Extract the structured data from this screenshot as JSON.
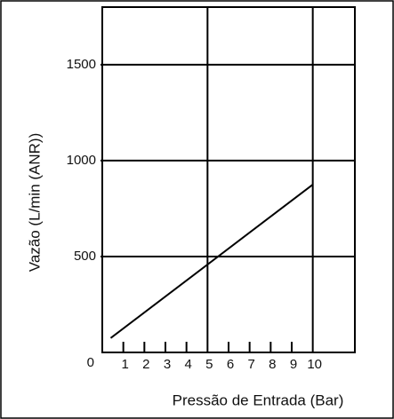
{
  "chart_data": {
    "type": "line",
    "xlabel": "Pressão de Entrada (Bar)",
    "ylabel": "Vazão (L/min (ANR))",
    "series": [
      {
        "x": [
          0.4,
          10
        ],
        "values": [
          75,
          875
        ],
        "color": "#000000"
      }
    ],
    "xlim": [
      0,
      12
    ],
    "xticks": [
      1,
      2,
      3,
      4,
      5,
      6,
      7,
      8,
      9,
      10
    ],
    "ylim": [
      0,
      1800
    ],
    "yticks": [
      0,
      500,
      1000,
      1500
    ],
    "grid": true
  }
}
